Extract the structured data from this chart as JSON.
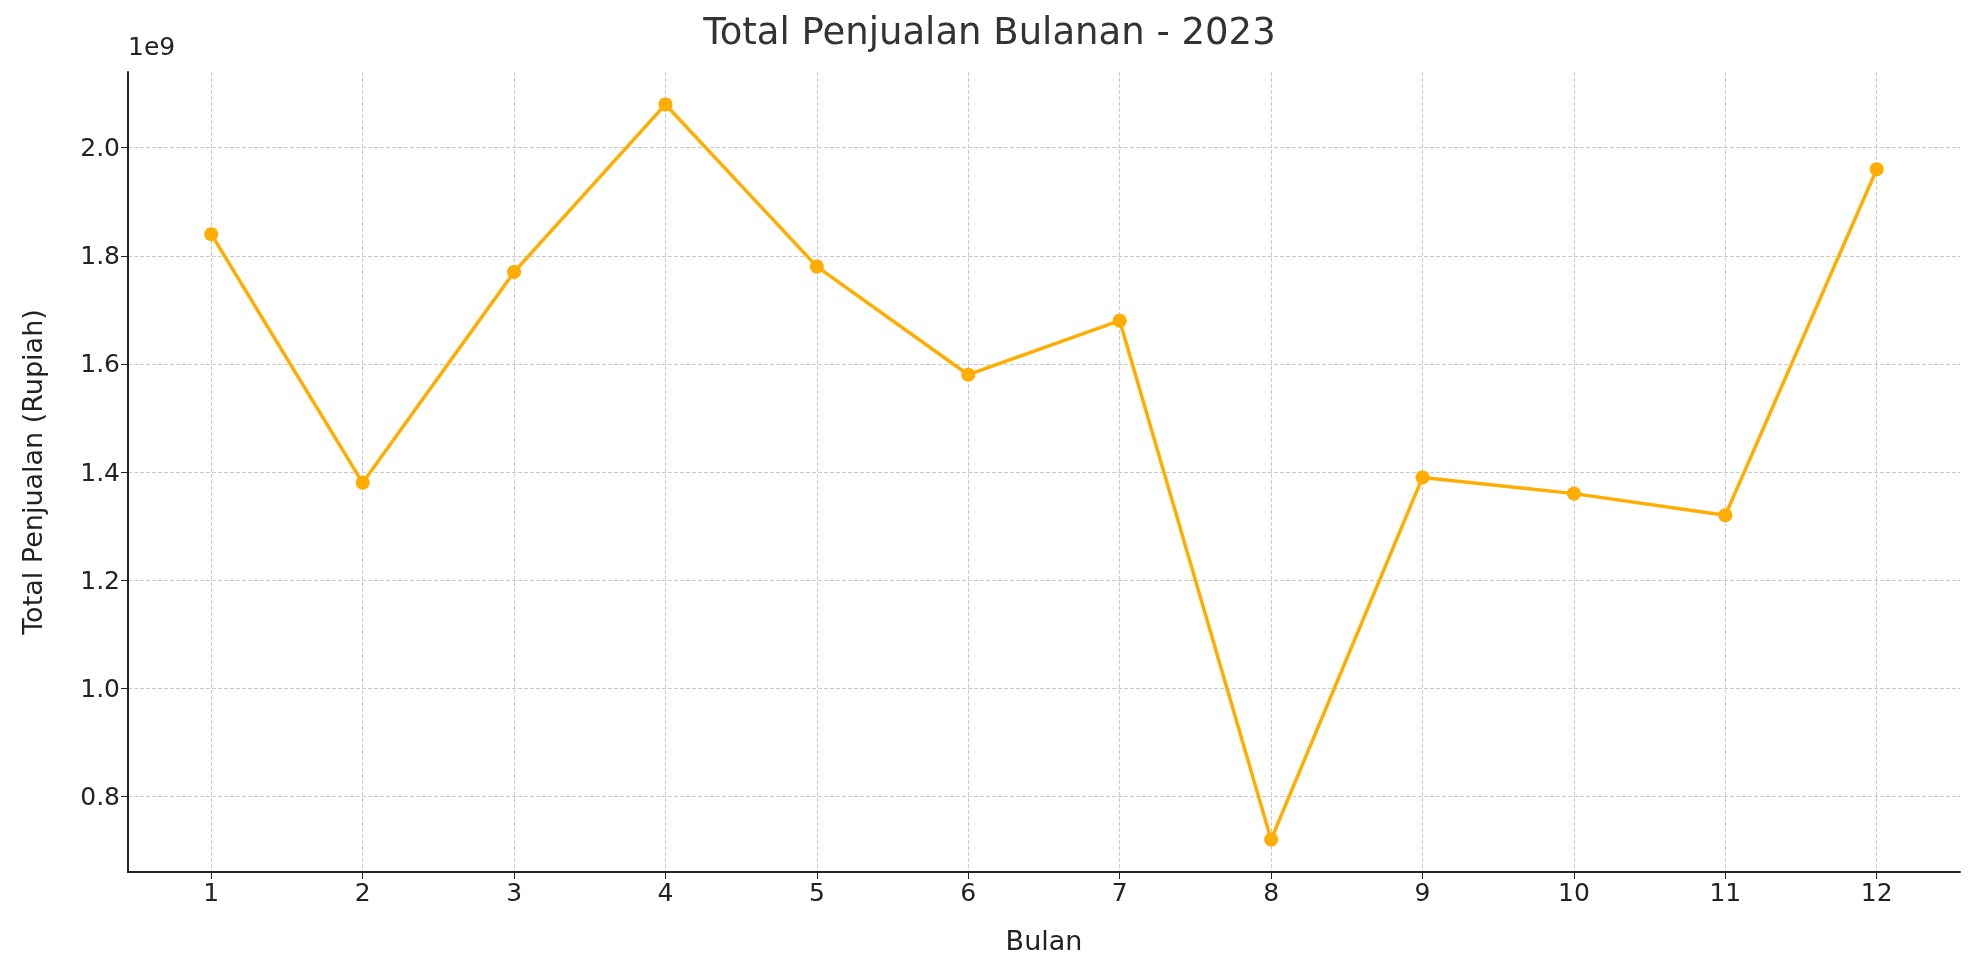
{
  "chart_data": {
    "type": "line",
    "title": "Total Penjualan Bulanan - 2023",
    "xlabel": "Bulan",
    "ylabel": "Total Penjualan (Rupiah)",
    "annotations": [
      "1e9"
    ],
    "x": [
      1,
      2,
      3,
      4,
      5,
      6,
      7,
      8,
      9,
      10,
      11,
      12
    ],
    "series": [
      {
        "color": "#ffad00",
        "values": [
          1.84,
          1.38,
          1.77,
          2.08,
          1.78,
          1.58,
          1.68,
          0.72,
          1.39,
          1.36,
          1.32,
          1.96
        ]
      }
    ],
    "xlim": [
      0.45,
      12.55
    ],
    "xticks": [
      1,
      2,
      3,
      4,
      5,
      6,
      7,
      8,
      9,
      10,
      11,
      12
    ],
    "ylim": [
      0.66,
      2.14
    ],
    "yticks": [
      {
        "value": 0.8,
        "label": "0.8"
      },
      {
        "value": 1,
        "label": "1.0"
      },
      {
        "value": 1.2,
        "label": "1.2"
      },
      {
        "value": 1.4,
        "label": "1.4"
      },
      {
        "value": 1.6,
        "label": "1.6"
      },
      {
        "value": 1.8,
        "label": "1.8"
      },
      {
        "value": 2,
        "label": "2.0"
      }
    ],
    "grid": true,
    "marker": "circle",
    "line_style": "solid"
  }
}
